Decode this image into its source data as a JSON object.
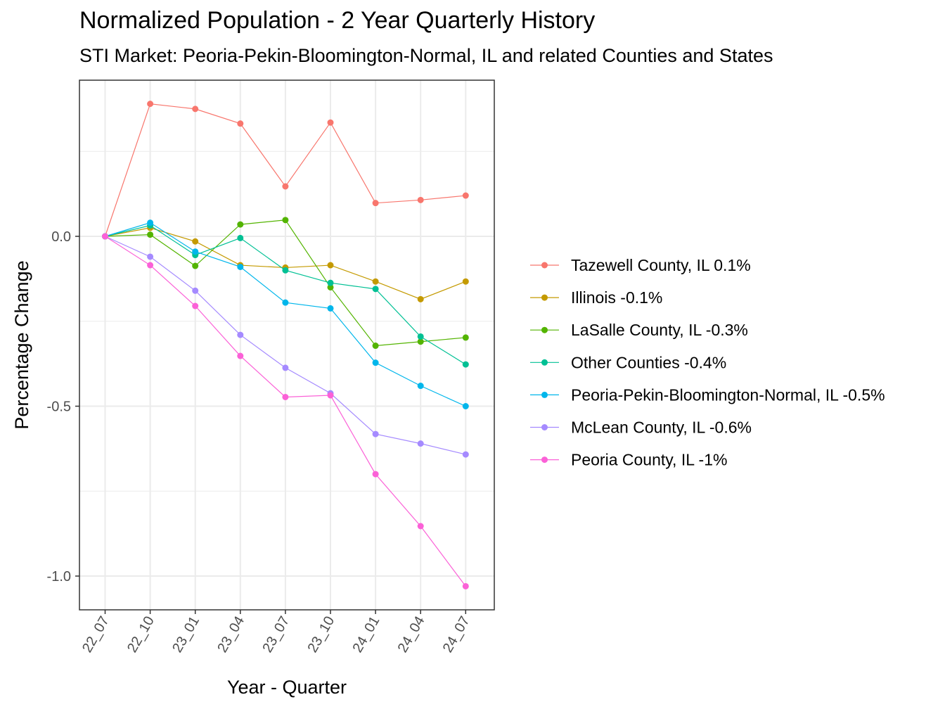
{
  "chart_data": {
    "type": "line",
    "title": "Normalized Population - 2 Year Quarterly History",
    "subtitle": "STI Market: Peoria-Pekin-Bloomington-Normal, IL and related Counties and States",
    "xlabel": "Year - Quarter",
    "ylabel": "Percentage Change",
    "categories": [
      "22_07",
      "22_10",
      "23_01",
      "23_04",
      "23_07",
      "23_10",
      "24_01",
      "24_04",
      "24_07"
    ],
    "y_ticks": [
      "0.0",
      "-0.5",
      "-1.0"
    ],
    "y_tick_values": [
      0.0,
      -0.5,
      -1.0
    ],
    "ylim": [
      -1.1,
      0.46
    ],
    "grid": true,
    "legend_position": "right",
    "series": [
      {
        "name": "Tazewell County, IL 0.1%",
        "color": "#F8766D",
        "values": [
          0.0,
          0.39,
          0.375,
          0.332,
          0.147,
          0.335,
          0.098,
          0.107,
          0.12
        ]
      },
      {
        "name": "Illinois -0.1%",
        "color": "#C49A00",
        "values": [
          0.0,
          0.025,
          -0.015,
          -0.085,
          -0.092,
          -0.085,
          -0.133,
          -0.185,
          -0.133
        ]
      },
      {
        "name": "LaSalle County, IL -0.3%",
        "color": "#53B400",
        "values": [
          0.0,
          0.005,
          -0.087,
          0.035,
          0.048,
          -0.15,
          -0.322,
          -0.31,
          -0.298
        ]
      },
      {
        "name": "Other Counties -0.4%",
        "color": "#00C094",
        "values": [
          0.0,
          0.032,
          -0.055,
          -0.005,
          -0.1,
          -0.137,
          -0.155,
          -0.295,
          -0.377
        ]
      },
      {
        "name": "Peoria-Pekin-Bloomington-Normal, IL -0.5%",
        "color": "#00B6EB",
        "values": [
          0.0,
          0.04,
          -0.045,
          -0.09,
          -0.195,
          -0.212,
          -0.372,
          -0.44,
          -0.5
        ]
      },
      {
        "name": "McLean County, IL -0.6%",
        "color": "#A58AFF",
        "values": [
          0.0,
          -0.06,
          -0.16,
          -0.29,
          -0.387,
          -0.462,
          -0.582,
          -0.61,
          -0.642
        ]
      },
      {
        "name": "Peoria County, IL -1%",
        "color": "#FB61D7",
        "values": [
          0.0,
          -0.085,
          -0.205,
          -0.352,
          -0.473,
          -0.468,
          -0.7,
          -0.853,
          -1.03
        ]
      }
    ]
  }
}
